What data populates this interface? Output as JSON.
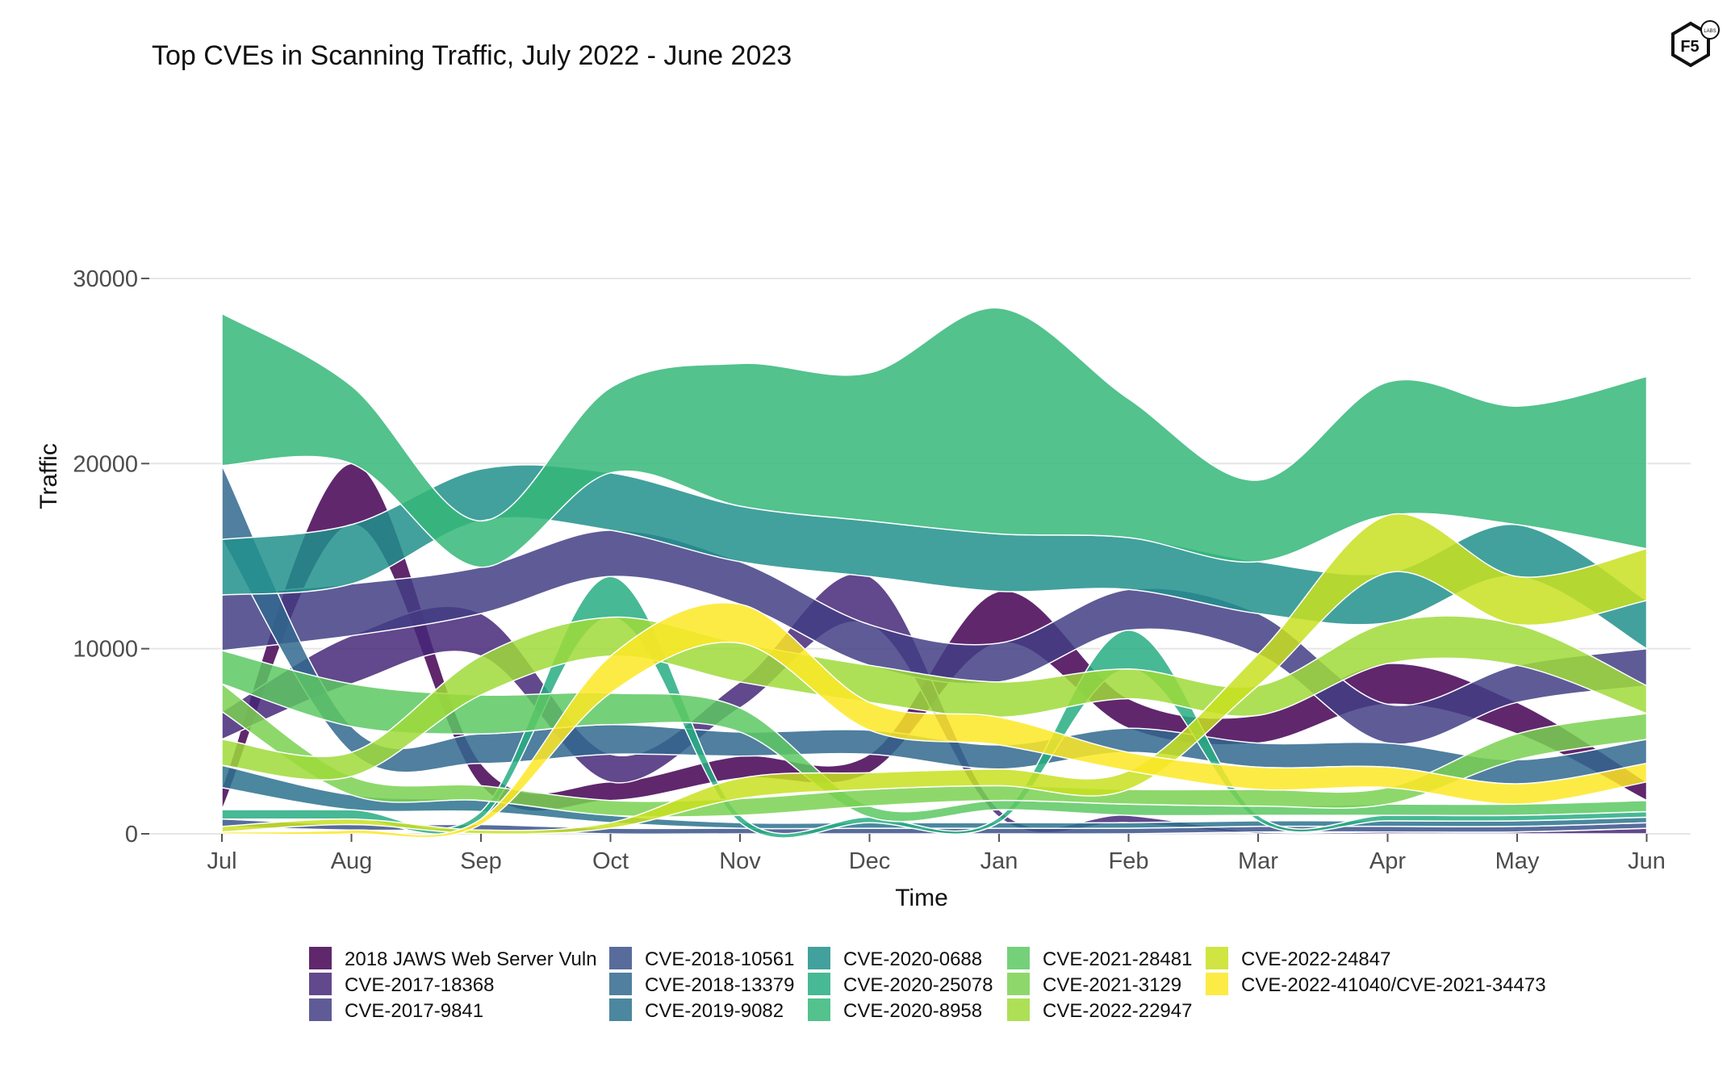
{
  "chart_data": {
    "type": "area",
    "title": "Top CVEs in Scanning Traffic, July 2022 - June 2023",
    "xlabel": "Time",
    "ylabel": "Traffic",
    "categories": [
      "Jul",
      "Aug",
      "Sep",
      "Oct",
      "Nov",
      "Dec",
      "Jan",
      "Feb",
      "Mar",
      "Apr",
      "May",
      "Jun"
    ],
    "y_ticks": [
      0,
      10000,
      20000,
      30000
    ],
    "ylim": [
      0,
      38500
    ],
    "grid": true,
    "legend_position": "bottom",
    "series": [
      {
        "name": "2018 JAWS Web Server Vuln",
        "color": "#440154",
        "values": [
          1200,
          3300,
          1200,
          1000,
          1200,
          1000,
          2800,
          1600,
          1500,
          2200,
          1700,
          1000
        ]
      },
      {
        "name": "CVE-2017-18368",
        "color": "#472878",
        "values": [
          1500,
          2600,
          2300,
          1500,
          1400,
          2600,
          400,
          400,
          100,
          100,
          100,
          300
        ]
      },
      {
        "name": "CVE-2017-9841",
        "color": "#433E85",
        "values": [
          3000,
          2800,
          2500,
          2500,
          2300,
          2200,
          2100,
          2200,
          2200,
          2100,
          2000,
          2000
        ]
      },
      {
        "name": "CVE-2018-10561",
        "color": "#3B528B",
        "values": [
          400,
          300,
          300,
          300,
          300,
          300,
          300,
          300,
          300,
          300,
          300,
          300
        ]
      },
      {
        "name": "CVE-2018-13379",
        "color": "#31688E",
        "values": [
          4000,
          1400,
          1600,
          1600,
          1300,
          1300,
          1300,
          1300,
          1300,
          1300,
          1300,
          1300
        ]
      },
      {
        "name": "CVE-2019-9082",
        "color": "#2C728E",
        "values": [
          1200,
          800,
          600,
          400,
          300,
          300,
          300,
          300,
          300,
          300,
          300,
          300
        ]
      },
      {
        "name": "CVE-2020-0688",
        "color": "#21908C",
        "values": [
          3000,
          3200,
          2800,
          3100,
          3000,
          3000,
          3100,
          2800,
          2800,
          2700,
          2800,
          2600
        ]
      },
      {
        "name": "CVE-2020-25078",
        "color": "#27AD81",
        "values": [
          500,
          500,
          400,
          2200,
          400,
          300,
          300,
          2100,
          300,
          300,
          300,
          300
        ]
      },
      {
        "name": "CVE-2020-8958",
        "color": "#35B779",
        "values": [
          8200,
          4200,
          2500,
          4600,
          7700,
          8000,
          12200,
          7500,
          4400,
          7200,
          6400,
          9300
        ]
      },
      {
        "name": "CVE-2021-28481",
        "color": "#5DC863",
        "values": [
          1800,
          2300,
          2100,
          1700,
          1300,
          600,
          500,
          600,
          500,
          600,
          600,
          600
        ]
      },
      {
        "name": "CVE-2021-3129",
        "color": "#7AD151",
        "values": [
          1500,
          1000,
          800,
          800,
          900,
          900,
          800,
          800,
          900,
          900,
          1400,
          1400
        ]
      },
      {
        "name": "CVE-2022-22947",
        "color": "#9FDA3A",
        "values": [
          1400,
          1300,
          2100,
          2100,
          2100,
          2000,
          1900,
          1600,
          1600,
          2200,
          2200,
          1500
        ]
      },
      {
        "name": "CVE-2022-24847",
        "color": "#C8E020",
        "values": [
          300,
          300,
          200,
          300,
          1100,
          900,
          900,
          1000,
          1700,
          3100,
          2600,
          2800
        ]
      },
      {
        "name": "CVE-2022-41040/CVE-2021-34473",
        "color": "#FDE725",
        "values": [
          100,
          200,
          300,
          2000,
          2100,
          1500,
          1500,
          1000,
          1200,
          1100,
          1100,
          1000
        ]
      }
    ]
  },
  "logo": {
    "text": "F5",
    "subtext": "LABS"
  }
}
